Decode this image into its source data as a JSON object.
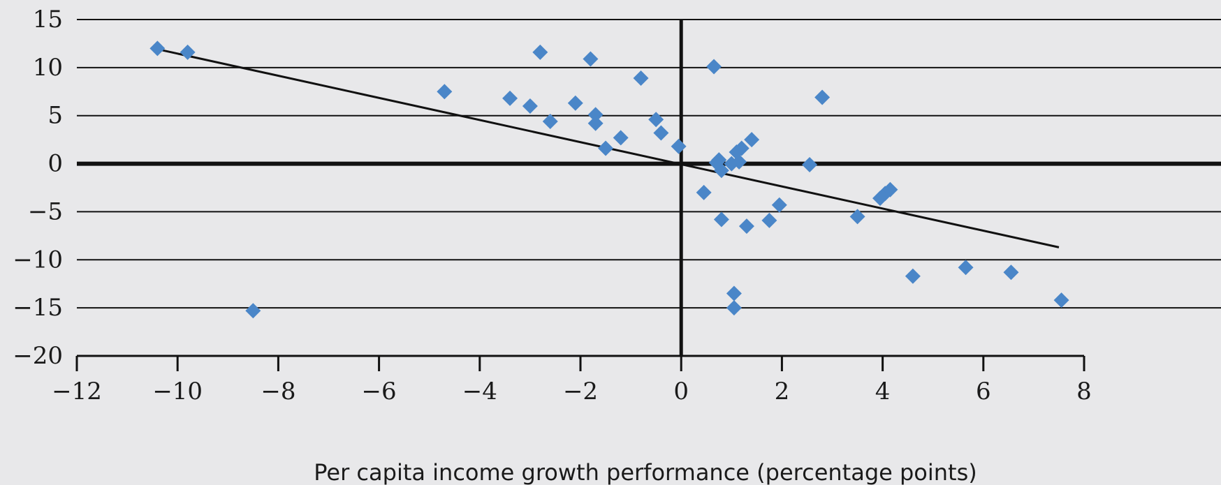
{
  "chart_data": {
    "type": "scatter",
    "title": "",
    "xlabel": "Per capita income growth performance (percentage points)",
    "ylabel": "",
    "xlim": [
      -12,
      8
    ],
    "ylim": [
      -20,
      15
    ],
    "x_ticks": [
      -12,
      -10,
      -8,
      -6,
      -4,
      -2,
      0,
      2,
      4,
      6,
      8
    ],
    "y_ticks": [
      15,
      10,
      5,
      0,
      -5,
      -10,
      -15,
      -20
    ],
    "grid": "horizontal",
    "legend": "none",
    "colors": {
      "points": "#4a86c8",
      "trend": "#111111",
      "grid": "#111111",
      "background": "#e8e8ea"
    },
    "series": [
      {
        "points": [
          [
            -10.4,
            12.0
          ],
          [
            -9.8,
            11.6
          ],
          [
            -8.5,
            -15.3
          ],
          [
            -4.7,
            7.5
          ],
          [
            -3.4,
            6.8
          ],
          [
            -3.0,
            6.0
          ],
          [
            -2.8,
            11.6
          ],
          [
            -2.6,
            4.4
          ],
          [
            -2.1,
            6.3
          ],
          [
            -1.8,
            10.9
          ],
          [
            -1.7,
            5.1
          ],
          [
            -1.7,
            4.2
          ],
          [
            -1.5,
            1.6
          ],
          [
            -1.2,
            2.7
          ],
          [
            -0.8,
            8.9
          ],
          [
            -0.5,
            4.6
          ],
          [
            -0.4,
            3.2
          ],
          [
            -0.05,
            1.8
          ],
          [
            0.45,
            -3.0
          ],
          [
            0.65,
            10.1
          ],
          [
            0.7,
            0.1
          ],
          [
            0.75,
            0.4
          ],
          [
            0.8,
            -0.7
          ],
          [
            0.8,
            -5.8
          ],
          [
            1.0,
            0.0
          ],
          [
            1.05,
            -13.5
          ],
          [
            1.05,
            -15.0
          ],
          [
            1.1,
            1.2
          ],
          [
            1.15,
            0.2
          ],
          [
            1.2,
            1.6
          ],
          [
            1.3,
            -6.5
          ],
          [
            1.4,
            2.5
          ],
          [
            1.75,
            -5.9
          ],
          [
            1.95,
            -4.3
          ],
          [
            2.55,
            -0.1
          ],
          [
            2.8,
            6.9
          ],
          [
            3.5,
            -5.5
          ],
          [
            3.95,
            -3.6
          ],
          [
            4.05,
            -3.1
          ],
          [
            4.15,
            -2.7
          ],
          [
            4.6,
            -11.7
          ],
          [
            5.65,
            -10.8
          ],
          [
            6.55,
            -11.3
          ],
          [
            7.55,
            -14.2
          ]
        ]
      }
    ],
    "trendline": {
      "x": [
        -10.3,
        7.5
      ],
      "y": [
        11.8,
        -8.7
      ]
    }
  }
}
